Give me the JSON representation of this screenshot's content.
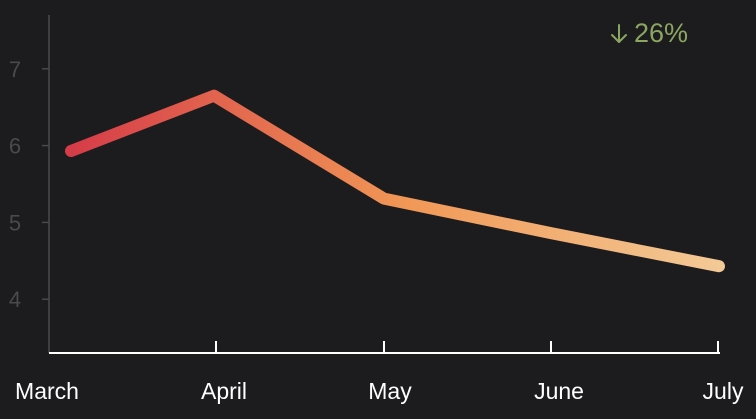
{
  "chart_data": {
    "type": "line",
    "categories": [
      "March",
      "April",
      "May",
      "June",
      "July"
    ],
    "values": [
      5.93,
      6.65,
      5.31,
      4.86,
      4.43
    ],
    "ylim": [
      3.3,
      7.7
    ],
    "yticks": [
      "4",
      "5",
      "6",
      "7"
    ],
    "grid": false,
    "gradient": [
      "#d63c48",
      "#f19856",
      "#f3c996"
    ],
    "change": {
      "direction": "down",
      "text": "26%",
      "color": "#8aa660"
    },
    "title": "",
    "xlabel": "",
    "ylabel": ""
  }
}
